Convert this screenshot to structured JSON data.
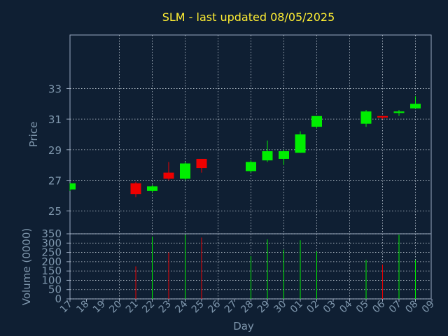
{
  "chart_data": {
    "type": "candlestick",
    "title": "SLM - last updated 08/05/2025",
    "xlabel": "Day",
    "price_panel": {
      "ylabel": "Price",
      "yticks": [
        25,
        27,
        29,
        31,
        33
      ],
      "ylim": [
        23.5,
        36.5
      ],
      "grid": true
    },
    "volume_panel": {
      "ylabel": "Volume (0000)",
      "yticks": [
        0,
        50,
        100,
        150,
        200,
        250,
        300,
        350
      ],
      "ylim": [
        0,
        350
      ],
      "grid": true
    },
    "x_tick_labels": [
      "17",
      "18",
      "19",
      "20",
      "21",
      "22",
      "23",
      "24",
      "25",
      "26",
      "27",
      "28",
      "29",
      "30",
      "01",
      "02",
      "03",
      "04",
      "05",
      "06",
      "07",
      "08",
      "09"
    ],
    "candles": [
      {
        "day": "17",
        "open": 26.4,
        "close": 26.8,
        "high": 26.8,
        "low": 26.3,
        "volume": 0,
        "color": "#00ee00"
      },
      {
        "day": "21",
        "open": 26.8,
        "close": 26.1,
        "high": 26.9,
        "low": 25.9,
        "volume": 175,
        "color": "#ee0000"
      },
      {
        "day": "22",
        "open": 26.3,
        "close": 26.6,
        "high": 26.7,
        "low": 26.2,
        "volume": 335,
        "color": "#00ee00"
      },
      {
        "day": "23",
        "open": 27.5,
        "close": 27.1,
        "high": 28.2,
        "low": 27.0,
        "volume": 250,
        "color": "#ee0000"
      },
      {
        "day": "24",
        "open": 27.1,
        "close": 28.1,
        "high": 28.2,
        "low": 27.0,
        "volume": 345,
        "color": "#00ee00"
      },
      {
        "day": "25",
        "open": 28.4,
        "close": 27.8,
        "high": 28.4,
        "low": 27.5,
        "volume": 330,
        "color": "#ee0000"
      },
      {
        "day": "28",
        "open": 27.6,
        "close": 28.2,
        "high": 28.3,
        "low": 27.5,
        "volume": 230,
        "color": "#00ee00"
      },
      {
        "day": "29",
        "open": 28.3,
        "close": 28.9,
        "high": 29.6,
        "low": 28.2,
        "volume": 320,
        "color": "#00ee00"
      },
      {
        "day": "30",
        "open": 28.4,
        "close": 28.9,
        "high": 29.0,
        "low": 28.0,
        "volume": 265,
        "color": "#00ee00"
      },
      {
        "day": "01",
        "open": 28.8,
        "close": 30.0,
        "high": 30.2,
        "low": 28.8,
        "volume": 315,
        "color": "#00ee00"
      },
      {
        "day": "02",
        "open": 30.5,
        "close": 31.2,
        "high": 31.2,
        "low": 30.4,
        "volume": 255,
        "color": "#00ee00"
      },
      {
        "day": "05",
        "open": 30.7,
        "close": 31.5,
        "high": 31.6,
        "low": 30.5,
        "volume": 210,
        "color": "#00ee00"
      },
      {
        "day": "06",
        "open": 31.2,
        "close": 31.1,
        "high": 31.2,
        "low": 31.0,
        "volume": 185,
        "color": "#ee0000"
      },
      {
        "day": "07",
        "open": 31.4,
        "close": 31.5,
        "high": 31.6,
        "low": 31.2,
        "volume": 345,
        "color": "#00ee00"
      },
      {
        "day": "08",
        "open": 31.7,
        "close": 32.0,
        "high": 32.5,
        "low": 31.7,
        "volume": 210,
        "color": "#00ee00"
      }
    ]
  }
}
